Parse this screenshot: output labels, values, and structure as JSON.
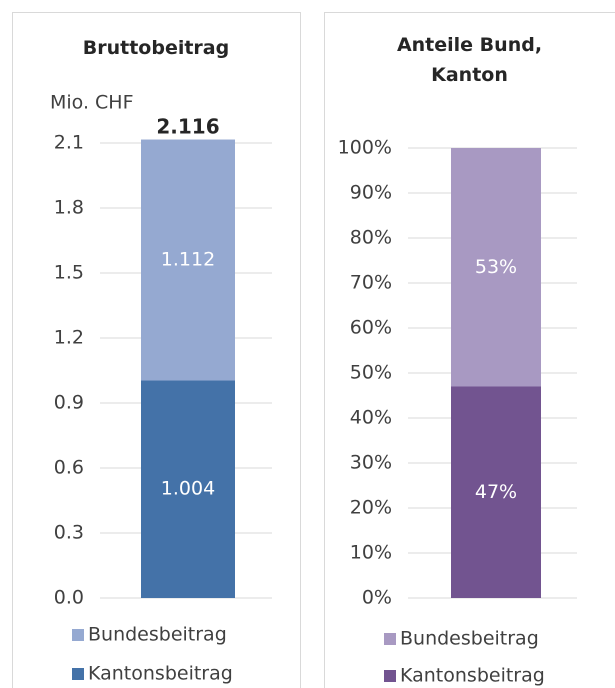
{
  "chart_data": [
    {
      "type": "bar",
      "stacked": true,
      "title": "Bruttobeitrag",
      "y_label": "Mio. CHF",
      "ylim": [
        0,
        2.1
      ],
      "yticks": [
        {
          "value": 0,
          "label": "0.0"
        },
        0.3,
        0.6,
        0.9,
        1.2,
        1.5,
        1.8,
        2.1
      ],
      "grid": true,
      "legend": "bottom",
      "series": [
        {
          "name": "Bundesbeitrag",
          "color": "#95a9d1",
          "values": [
            1.112
          ]
        },
        {
          "name": "Kantonsbeitrag",
          "color": "#4472a8",
          "values": [
            1.004
          ]
        }
      ],
      "total": 2.116
    },
    {
      "type": "bar",
      "stacked": true,
      "title": "Anteile Bund, Kanton",
      "ylim": [
        0,
        100
      ],
      "yticks": [
        {
          "value": 0,
          "label": "0%"
        },
        {
          "value": 10,
          "label": "10%"
        },
        {
          "value": 20,
          "label": "20%"
        },
        {
          "value": 30,
          "label": "30%"
        },
        {
          "value": 40,
          "label": "40%"
        },
        {
          "value": 50,
          "label": "50%"
        },
        {
          "value": 60,
          "label": "60%"
        },
        {
          "value": 70,
          "label": "70%"
        },
        {
          "value": 80,
          "label": "80%"
        },
        {
          "value": 90,
          "label": "90%"
        },
        {
          "value": 100,
          "label": "100%"
        }
      ],
      "grid": true,
      "legend": "bottom",
      "series": [
        {
          "name": "Bundesbeitrag",
          "color": "#a899c2",
          "values": [
            53
          ],
          "value_labels": [
            "53%"
          ]
        },
        {
          "name": "Kantonsbeitrag",
          "color": "#725490",
          "values": [
            47
          ],
          "value_labels": [
            "47%"
          ]
        }
      ]
    }
  ]
}
